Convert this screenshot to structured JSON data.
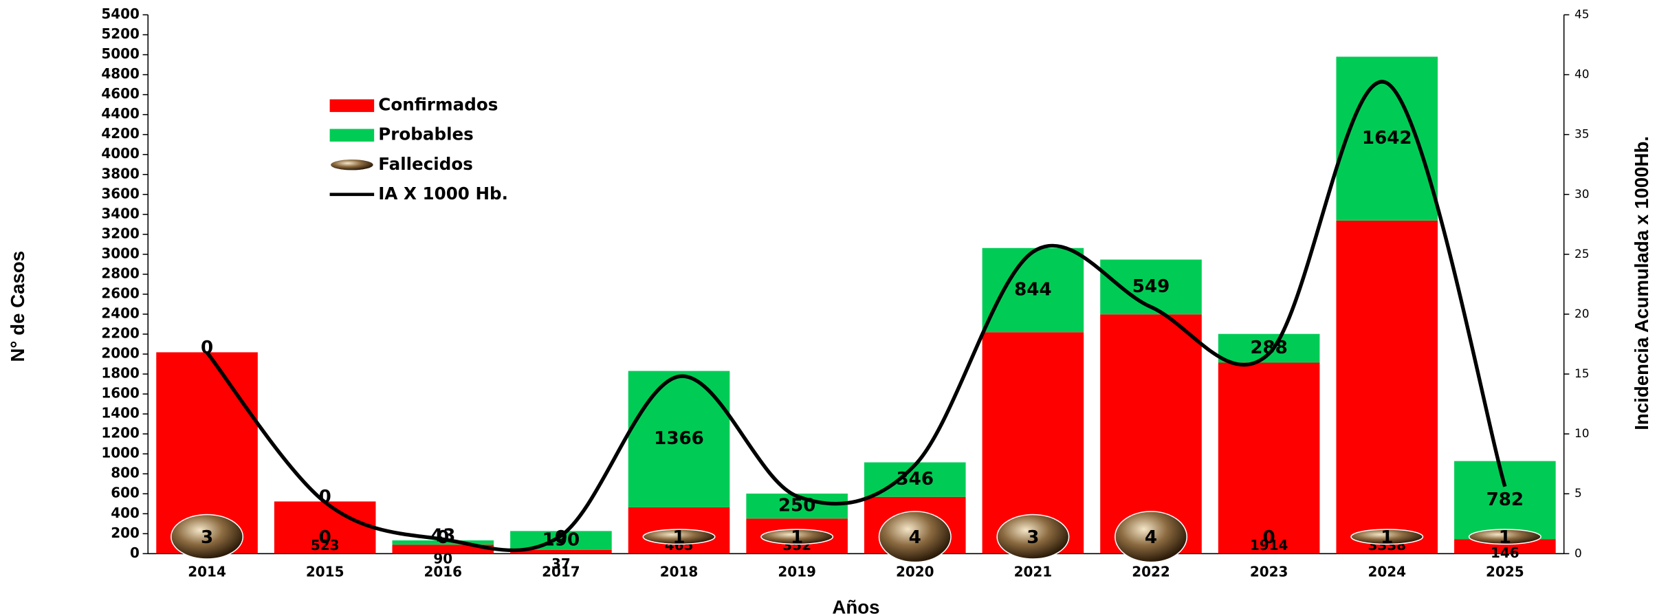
{
  "chart_data": {
    "type": "bar",
    "categories": [
      "2014",
      "2015",
      "2016",
      "2017",
      "2018",
      "2019",
      "2020",
      "2021",
      "2022",
      "2023",
      "2024",
      "2025"
    ],
    "series": [
      {
        "name": "Confirmados",
        "color": "#ff0000",
        "values": [
          2018,
          523,
          90,
          37,
          465,
          352,
          569,
          2219,
          2398,
          1914,
          3338,
          146
        ]
      },
      {
        "name": "Probables",
        "color": "#00cc55",
        "values": [
          0,
          0,
          43,
          190,
          1366,
          250,
          346,
          844,
          549,
          288,
          1642,
          782
        ]
      },
      {
        "name": "Fallecidos",
        "color": "#8b6a40",
        "values": [
          3,
          0,
          0,
          0,
          1,
          1,
          4,
          3,
          4,
          0,
          1,
          1
        ]
      },
      {
        "name": "IA X 1000 Hb.",
        "color": "#000000",
        "axis": "y2",
        "values": [
          16.8,
          4.3,
          1.2,
          1.5,
          14.8,
          4.8,
          7.4,
          25.2,
          20.6,
          16.7,
          39.3,
          5.6
        ]
      }
    ],
    "xlabel": "Años",
    "ylabel": "N° de Casos",
    "y2label": "Incidencia Acumulada x 1000Hb.",
    "ylim": [
      0,
      5400
    ],
    "yticks": [
      0,
      200,
      400,
      600,
      800,
      1000,
      1200,
      1400,
      1600,
      1800,
      2000,
      2200,
      2400,
      2600,
      2800,
      3000,
      3200,
      3400,
      3600,
      3800,
      4000,
      4200,
      4400,
      4600,
      4800,
      5000,
      5200,
      5400
    ],
    "y2lim": [
      0,
      45
    ],
    "y2ticks": [
      0,
      5,
      10,
      15,
      20,
      25,
      30,
      35,
      40,
      45
    ],
    "legend": "upper left"
  }
}
